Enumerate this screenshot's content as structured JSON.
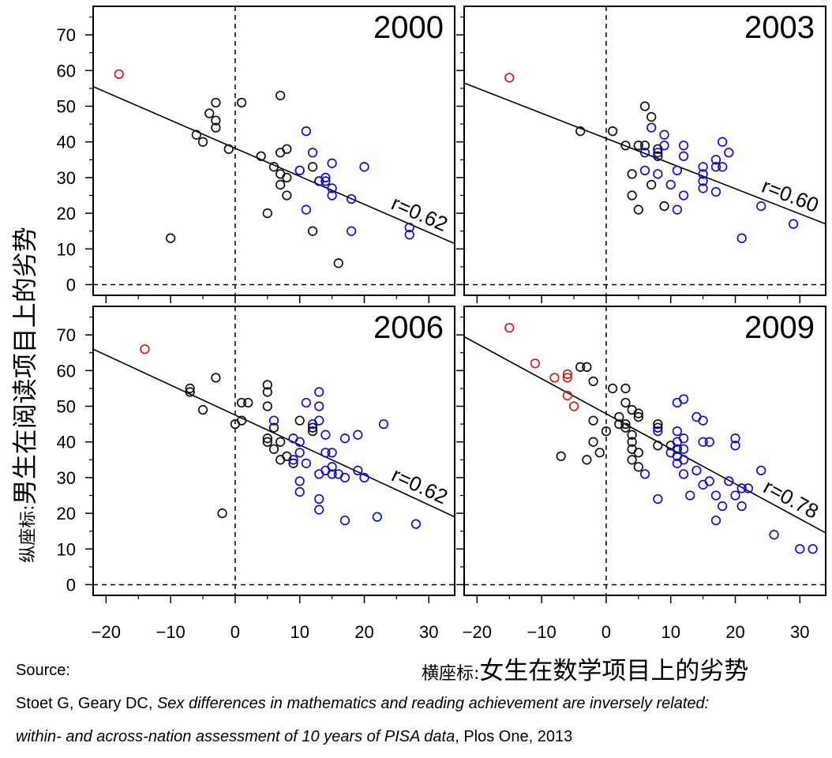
{
  "y_title": {
    "prefix": "纵座标:",
    "main": "男生在阅读项目上的劣势"
  },
  "x_title": {
    "prefix": "横座标:",
    "main": "女生在数学项目上的劣势"
  },
  "source": {
    "label": "Source:",
    "authors": "Stoet G, Geary DC, ",
    "title_part1": "Sex differences in mathematics and reading achievement are inversely related:",
    "title_part2": "within- and across-nation assessment of 10 years of PISA data",
    "journal": ", Plos One, 2013"
  },
  "colors": {
    "black": "#111111",
    "blue": "#1010c8",
    "red": "#d41c1c",
    "frame": "#000000"
  },
  "chart_data": [
    {
      "type": "scatter",
      "title": "2000",
      "annotation": "r=0.62",
      "xlim": [
        -22,
        34
      ],
      "ylim": [
        -3,
        78
      ],
      "xticks": [
        -20,
        -10,
        0,
        10,
        20,
        30
      ],
      "yticks": [
        0,
        10,
        20,
        30,
        40,
        50,
        60,
        70
      ],
      "reference_lines": {
        "x": 0,
        "y": 0,
        "style": "dashed"
      },
      "trend_line": [
        [
          -22,
          55.5
        ],
        [
          34,
          11.5
        ]
      ],
      "series": [
        {
          "color": "red",
          "points": [
            [
              -18,
              59
            ]
          ]
        },
        {
          "color": "black",
          "points": [
            [
              -10,
              13
            ],
            [
              -6,
              42
            ],
            [
              -5,
              40
            ],
            [
              -4,
              48
            ],
            [
              -3,
              51
            ],
            [
              -3,
              46
            ],
            [
              -3,
              44
            ],
            [
              -1,
              38
            ],
            [
              1,
              51
            ],
            [
              4,
              36
            ],
            [
              5,
              20
            ],
            [
              6,
              33
            ],
            [
              7,
              53
            ],
            [
              7,
              37
            ],
            [
              7,
              31
            ],
            [
              7,
              28
            ],
            [
              8,
              38
            ],
            [
              8,
              30
            ],
            [
              8,
              25
            ],
            [
              10,
              32
            ],
            [
              12,
              33
            ],
            [
              12,
              15
            ],
            [
              13,
              29
            ],
            [
              16,
              6
            ]
          ]
        },
        {
          "color": "blue",
          "points": [
            [
              10,
              32
            ],
            [
              11,
              43
            ],
            [
              11,
              21
            ],
            [
              12,
              37
            ],
            [
              13,
              29
            ],
            [
              14,
              30
            ],
            [
              14,
              29
            ],
            [
              15,
              34
            ],
            [
              15,
              27
            ],
            [
              15,
              25
            ],
            [
              18,
              24
            ],
            [
              18,
              15
            ],
            [
              20,
              33
            ],
            [
              27,
              16
            ],
            [
              27,
              14
            ]
          ]
        }
      ]
    },
    {
      "type": "scatter",
      "title": "2003",
      "annotation": "r=0.60",
      "xlim": [
        -22,
        34
      ],
      "ylim": [
        -3,
        78
      ],
      "xticks": [
        -20,
        -10,
        0,
        10,
        20,
        30
      ],
      "yticks": [
        0,
        10,
        20,
        30,
        40,
        50,
        60,
        70
      ],
      "reference_lines": {
        "x": 0,
        "y": 0,
        "style": "dashed"
      },
      "trend_line": [
        [
          -22,
          56.5
        ],
        [
          34,
          17
        ]
      ],
      "series": [
        {
          "color": "red",
          "points": [
            [
              -15,
              58
            ]
          ]
        },
        {
          "color": "black",
          "points": [
            [
              -4,
              43
            ],
            [
              1,
              43
            ],
            [
              3,
              39
            ],
            [
              4,
              31
            ],
            [
              4,
              25
            ],
            [
              5,
              39
            ],
            [
              5,
              21
            ],
            [
              6,
              50
            ],
            [
              6,
              39
            ],
            [
              7,
              47
            ],
            [
              7,
              28
            ],
            [
              8,
              38
            ],
            [
              8,
              36
            ],
            [
              9,
              22
            ]
          ]
        },
        {
          "color": "blue",
          "points": [
            [
              6,
              37
            ],
            [
              6,
              32
            ],
            [
              7,
              44
            ],
            [
              8,
              37
            ],
            [
              8,
              31
            ],
            [
              9,
              42
            ],
            [
              9,
              39
            ],
            [
              10,
              28
            ],
            [
              11,
              32
            ],
            [
              11,
              21
            ],
            [
              12,
              39
            ],
            [
              12,
              36
            ],
            [
              12,
              25
            ],
            [
              15,
              33
            ],
            [
              15,
              31
            ],
            [
              15,
              29
            ],
            [
              15,
              27
            ],
            [
              17,
              35
            ],
            [
              17,
              33
            ],
            [
              17,
              26
            ],
            [
              18,
              40
            ],
            [
              18,
              33
            ],
            [
              19,
              37
            ],
            [
              21,
              13
            ],
            [
              24,
              22
            ],
            [
              29,
              17
            ]
          ]
        }
      ]
    },
    {
      "type": "scatter",
      "title": "2006",
      "annotation": "r=0.62",
      "xlim": [
        -22,
        34
      ],
      "ylim": [
        -3,
        78
      ],
      "xticks": [
        -20,
        -10,
        0,
        10,
        20,
        30
      ],
      "yticks": [
        0,
        10,
        20,
        30,
        40,
        50,
        60,
        70
      ],
      "reference_lines": {
        "x": 0,
        "y": 0,
        "style": "dashed"
      },
      "trend_line": [
        [
          -22,
          66
        ],
        [
          34,
          19
        ]
      ],
      "series": [
        {
          "color": "red",
          "points": [
            [
              -14,
              66
            ]
          ]
        },
        {
          "color": "black",
          "points": [
            [
              -7,
              55
            ],
            [
              -7,
              54
            ],
            [
              -5,
              49
            ],
            [
              -3,
              58
            ],
            [
              -2,
              20
            ],
            [
              0,
              45
            ],
            [
              1,
              51
            ],
            [
              1,
              46
            ],
            [
              2,
              51
            ],
            [
              5,
              56
            ],
            [
              5,
              54
            ],
            [
              5,
              50
            ],
            [
              5,
              41
            ],
            [
              5,
              40
            ],
            [
              6,
              44
            ],
            [
              6,
              38
            ],
            [
              7,
              40
            ],
            [
              7,
              35
            ],
            [
              8,
              36
            ],
            [
              9,
              34
            ],
            [
              10,
              46
            ],
            [
              12,
              44
            ],
            [
              12,
              43
            ]
          ]
        },
        {
          "color": "blue",
          "points": [
            [
              6,
              46
            ],
            [
              9,
              41
            ],
            [
              9,
              35
            ],
            [
              10,
              40
            ],
            [
              10,
              37
            ],
            [
              10,
              29
            ],
            [
              10,
              26
            ],
            [
              11,
              51
            ],
            [
              11,
              34
            ],
            [
              12,
              45
            ],
            [
              13,
              54
            ],
            [
              13,
              50
            ],
            [
              13,
              46
            ],
            [
              13,
              31
            ],
            [
              13,
              24
            ],
            [
              13,
              21
            ],
            [
              14,
              42
            ],
            [
              14,
              37
            ],
            [
              14,
              32
            ],
            [
              15,
              37
            ],
            [
              15,
              33
            ],
            [
              15,
              31
            ],
            [
              16,
              31
            ],
            [
              17,
              41
            ],
            [
              17,
              30
            ],
            [
              17,
              18
            ],
            [
              19,
              42
            ],
            [
              19,
              32
            ],
            [
              20,
              30
            ],
            [
              22,
              19
            ],
            [
              23,
              45
            ],
            [
              28,
              17
            ]
          ]
        }
      ]
    },
    {
      "type": "scatter",
      "title": "2009",
      "annotation": "r=0.78",
      "xlim": [
        -22,
        34
      ],
      "ylim": [
        -3,
        78
      ],
      "xticks": [
        -20,
        -10,
        0,
        10,
        20,
        30
      ],
      "yticks": [
        0,
        10,
        20,
        30,
        40,
        50,
        60,
        70
      ],
      "reference_lines": {
        "x": 0,
        "y": 0,
        "style": "dashed"
      },
      "trend_line": [
        [
          -22,
          69.5
        ],
        [
          34,
          14.5
        ]
      ],
      "series": [
        {
          "color": "red",
          "points": [
            [
              -15,
              72
            ],
            [
              -11,
              62
            ],
            [
              -8,
              58
            ],
            [
              -6,
              59
            ],
            [
              -6,
              58
            ],
            [
              -6,
              53
            ],
            [
              -5,
              50
            ]
          ]
        },
        {
          "color": "black",
          "points": [
            [
              -7,
              36
            ],
            [
              -4,
              61
            ],
            [
              -3,
              61
            ],
            [
              -3,
              35
            ],
            [
              -2,
              57
            ],
            [
              -2,
              46
            ],
            [
              -2,
              40
            ],
            [
              -1,
              37
            ],
            [
              0,
              43
            ],
            [
              1,
              55
            ],
            [
              2,
              47
            ],
            [
              2,
              45
            ],
            [
              3,
              55
            ],
            [
              3,
              51
            ],
            [
              3,
              45
            ],
            [
              3,
              44
            ],
            [
              4,
              49
            ],
            [
              4,
              42
            ],
            [
              4,
              40
            ],
            [
              4,
              38
            ],
            [
              4,
              35
            ],
            [
              5,
              48
            ],
            [
              5,
              47
            ],
            [
              5,
              37
            ],
            [
              5,
              33
            ],
            [
              8,
              45
            ],
            [
              8,
              44
            ],
            [
              8,
              39
            ],
            [
              10,
              39
            ],
            [
              11,
              38
            ]
          ]
        },
        {
          "color": "blue",
          "points": [
            [
              6,
              31
            ],
            [
              8,
              43
            ],
            [
              8,
              24
            ],
            [
              10,
              37
            ],
            [
              11,
              51
            ],
            [
              11,
              43
            ],
            [
              11,
              40
            ],
            [
              11,
              36
            ],
            [
              11,
              34
            ],
            [
              12,
              52
            ],
            [
              12,
              41
            ],
            [
              12,
              38
            ],
            [
              12,
              35
            ],
            [
              12,
              31
            ],
            [
              13,
              25
            ],
            [
              14,
              47
            ],
            [
              14,
              32
            ],
            [
              15,
              46
            ],
            [
              15,
              40
            ],
            [
              15,
              28
            ],
            [
              16,
              40
            ],
            [
              16,
              29
            ],
            [
              17,
              25
            ],
            [
              17,
              18
            ],
            [
              18,
              22
            ],
            [
              19,
              29
            ],
            [
              20,
              41
            ],
            [
              20,
              39
            ],
            [
              20,
              25
            ],
            [
              21,
              27
            ],
            [
              21,
              22
            ],
            [
              22,
              27
            ],
            [
              24,
              32
            ],
            [
              26,
              14
            ],
            [
              30,
              10
            ],
            [
              32,
              10
            ]
          ]
        }
      ]
    }
  ]
}
